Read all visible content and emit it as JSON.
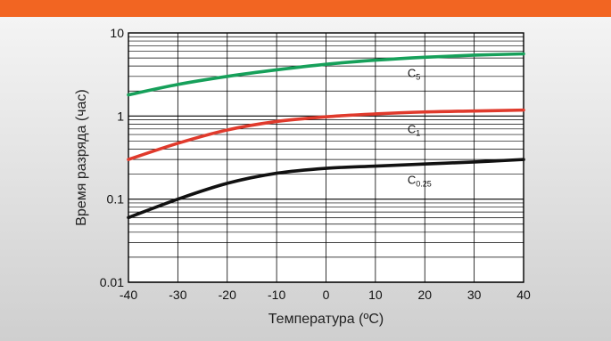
{
  "colors": {
    "accent_bar": "#f26522",
    "grid": "#000000",
    "c5": "#16a05a",
    "c1": "#e03a2c",
    "c025": "#111111"
  },
  "chart_data": {
    "type": "line",
    "title": "",
    "xlabel": "Температура (ºC)",
    "ylabel": "Время разряда (час)",
    "xlim": [
      -40,
      40
    ],
    "ylim": [
      0.01,
      10
    ],
    "yscale": "log",
    "grid": true,
    "x_ticks": [
      "-40",
      "-30",
      "-20",
      "-10",
      "0",
      "10",
      "20",
      "30",
      "40"
    ],
    "y_ticks": [
      "0.01",
      "0.1",
      "1",
      "10"
    ],
    "x": [
      -40,
      -30,
      -20,
      -10,
      0,
      10,
      20,
      30,
      40
    ],
    "series": [
      {
        "name": "C5",
        "label_main": "C",
        "label_sub": "5",
        "color": "#16a05a",
        "values": [
          1.8,
          2.4,
          3.0,
          3.6,
          4.2,
          4.7,
          5.1,
          5.4,
          5.6
        ]
      },
      {
        "name": "C1",
        "label_main": "C",
        "label_sub": "1",
        "color": "#e03a2c",
        "values": [
          0.3,
          0.47,
          0.68,
          0.86,
          0.98,
          1.06,
          1.12,
          1.15,
          1.18
        ]
      },
      {
        "name": "C0.25",
        "label_main": "C",
        "label_sub": "0.25",
        "color": "#111111",
        "values": [
          0.06,
          0.1,
          0.155,
          0.205,
          0.235,
          0.25,
          0.265,
          0.28,
          0.3
        ]
      }
    ]
  }
}
